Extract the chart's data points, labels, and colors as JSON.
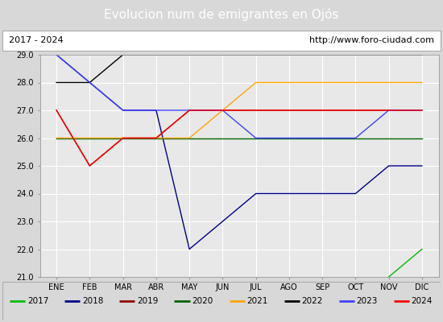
{
  "title": "Evolucion num de emigrantes en Ojós",
  "title_bg": "#4472c4",
  "subtitle_left": "2017 - 2024",
  "subtitle_right": "http://www.foro-ciudad.com",
  "months": [
    "ENE",
    "FEB",
    "MAR",
    "ABR",
    "MAY",
    "JUN",
    "JUL",
    "AGO",
    "SEP",
    "OCT",
    "NOV",
    "DIC"
  ],
  "ylim": [
    21.0,
    29.0
  ],
  "yticks": [
    21.0,
    22.0,
    23.0,
    24.0,
    25.0,
    26.0,
    27.0,
    28.0,
    29.0
  ],
  "series": [
    {
      "label": "2017",
      "color": "#00bb00",
      "data": [
        [
          11,
          21.0
        ],
        [
          12,
          22.0
        ]
      ]
    },
    {
      "label": "2018",
      "color": "#00008b",
      "data": [
        [
          1,
          29.0
        ],
        [
          2,
          28.0
        ],
        [
          3,
          27.0
        ],
        [
          4,
          27.0
        ],
        [
          5,
          22.0
        ],
        [
          6,
          23.0
        ],
        [
          7,
          24.0
        ],
        [
          8,
          24.0
        ],
        [
          9,
          24.0
        ],
        [
          10,
          24.0
        ],
        [
          11,
          25.0
        ],
        [
          12,
          25.0
        ]
      ]
    },
    {
      "label": "2019",
      "color": "#8b0000",
      "data": [
        [
          1,
          27.0
        ],
        [
          2,
          25.0
        ],
        [
          3,
          26.0
        ],
        [
          4,
          26.0
        ],
        [
          5,
          27.0
        ],
        [
          6,
          27.0
        ],
        [
          7,
          27.0
        ],
        [
          8,
          27.0
        ],
        [
          9,
          27.0
        ],
        [
          10,
          27.0
        ],
        [
          11,
          27.0
        ],
        [
          12,
          27.0
        ]
      ]
    },
    {
      "label": "2020",
      "color": "#006400",
      "data": [
        [
          1,
          26.0
        ],
        [
          2,
          26.0
        ],
        [
          3,
          26.0
        ],
        [
          4,
          26.0
        ],
        [
          5,
          26.0
        ],
        [
          6,
          26.0
        ],
        [
          7,
          26.0
        ],
        [
          8,
          26.0
        ],
        [
          9,
          26.0
        ],
        [
          10,
          26.0
        ],
        [
          11,
          26.0
        ],
        [
          12,
          26.0
        ]
      ]
    },
    {
      "label": "2021",
      "color": "#ffa500",
      "data": [
        [
          1,
          26.0
        ],
        [
          2,
          26.0
        ],
        [
          3,
          26.0
        ],
        [
          4,
          26.0
        ],
        [
          5,
          26.0
        ],
        [
          6,
          27.0
        ],
        [
          7,
          28.0
        ],
        [
          8,
          28.0
        ],
        [
          9,
          28.0
        ],
        [
          10,
          28.0
        ],
        [
          11,
          28.0
        ],
        [
          12,
          28.0
        ]
      ]
    },
    {
      "label": "2022",
      "color": "#000000",
      "data": [
        [
          1,
          28.0
        ],
        [
          2,
          28.0
        ],
        [
          3,
          29.0
        ],
        [
          4,
          29.0
        ],
        [
          5,
          29.0
        ],
        [
          6,
          29.0
        ],
        [
          7,
          29.0
        ],
        [
          8,
          29.0
        ],
        [
          9,
          29.0
        ],
        [
          10,
          29.0
        ],
        [
          11,
          29.0
        ],
        [
          12,
          29.0
        ]
      ]
    },
    {
      "label": "2023",
      "color": "#4040ff",
      "data": [
        [
          1,
          29.0
        ],
        [
          2,
          28.0
        ],
        [
          3,
          27.0
        ],
        [
          4,
          27.0
        ],
        [
          5,
          27.0
        ],
        [
          6,
          27.0
        ],
        [
          7,
          26.0
        ],
        [
          8,
          26.0
        ],
        [
          9,
          26.0
        ],
        [
          10,
          26.0
        ],
        [
          11,
          27.0
        ],
        [
          12,
          27.0
        ]
      ]
    },
    {
      "label": "2024",
      "color": "#ff0000",
      "data": [
        [
          1,
          27.0
        ],
        [
          2,
          25.0
        ],
        [
          3,
          26.0
        ],
        [
          4,
          26.0
        ],
        [
          5,
          27.0
        ],
        [
          6,
          27.0
        ],
        [
          7,
          27.0
        ],
        [
          8,
          27.0
        ],
        [
          9,
          27.0
        ],
        [
          10,
          27.0
        ],
        [
          11,
          27.0
        ],
        [
          12,
          27.0
        ]
      ]
    }
  ],
  "bg_color": "#d8d8d8",
  "plot_bg": "#e8e8e8",
  "grid_color": "#ffffff",
  "legend_bg": "#ffffff",
  "title_fontsize": 11,
  "subtitle_fontsize": 8,
  "tick_fontsize": 7,
  "legend_fontsize": 7.5
}
